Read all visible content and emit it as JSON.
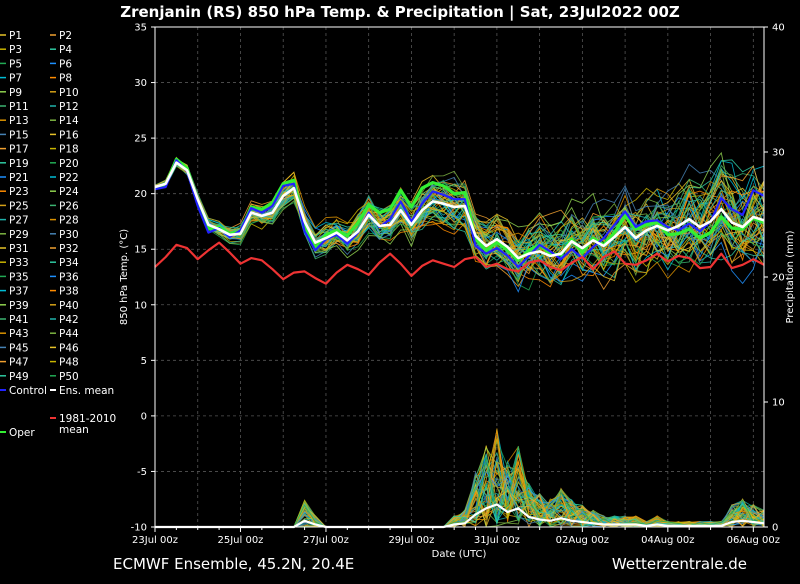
{
  "title": "Zrenjanin  (RS)  850 hPa Temp. & Precipitation | Sat, 23Jul2022 00Z",
  "footer_left": "ECMWF Ensemble, 45.2N, 20.4E",
  "footer_right": "Wetterzentrale.de",
  "colors": {
    "background": "#000000",
    "ens_mean": "#ffffff",
    "control": "#2222ff",
    "oper": "#33ee33",
    "climate": "#ee3333"
  },
  "chart_data": {
    "type": "line",
    "title": "Zrenjanin  (RS)  850 hPa Temp. & Precipitation | Sat, 23Jul2022 00Z",
    "xlabel": "Date (UTC)",
    "ylabel": "850 hPa Temp. (°C)",
    "y2label": "Precipitation (mm)",
    "ylim": [
      -10,
      35
    ],
    "y2lim": [
      0,
      40
    ],
    "yticks": [
      "-10",
      "-5",
      "0",
      "5",
      "10",
      "15",
      "20",
      "25",
      "30",
      "35"
    ],
    "y2ticks": [
      "0",
      "10",
      "20",
      "30",
      "40"
    ],
    "xticks": [
      "23Jul 00z",
      "25Jul 00z",
      "27Jul 00z",
      "29Jul 00z",
      "31Jul 00z",
      "02Aug 00z",
      "04Aug 00z",
      "06Aug 00z"
    ],
    "x_start": "2022-07-23 00z",
    "x_step_hours": 6,
    "grid": true,
    "legend": {
      "placement": "left outside",
      "members": [
        "P1",
        "P2",
        "P3",
        "P4",
        "P5",
        "P6",
        "P7",
        "P8",
        "P9",
        "P10",
        "P11",
        "P12",
        "P13",
        "P14",
        "P15",
        "P16",
        "P17",
        "P18",
        "P19",
        "P20",
        "P21",
        "P22",
        "P23",
        "P24",
        "P25",
        "P26",
        "P27",
        "P28",
        "P29",
        "P30",
        "P31",
        "P32",
        "P33",
        "P34",
        "P35",
        "P36",
        "P37",
        "P38",
        "P39",
        "P40",
        "P41",
        "P42",
        "P43",
        "P44",
        "P45",
        "P46",
        "P47",
        "P48",
        "P49",
        "P50"
      ],
      "control": "Control",
      "ens_mean": "Ens. mean",
      "climate": "1981-2010\nmean",
      "oper": "Oper"
    },
    "series": [
      {
        "name": "Ens. mean",
        "values": [
          20.6,
          20.9,
          22.8,
          22.1,
          19.5,
          17.2,
          16.8,
          16.3,
          16.4,
          18.3,
          18.0,
          18.3,
          19.8,
          20.5,
          17.5,
          15.6,
          16.0,
          16.5,
          15.8,
          16.6,
          18.1,
          17.1,
          17.2,
          18.5,
          17.2,
          18.5,
          19.3,
          19.1,
          18.8,
          18.9,
          16.2,
          15.3,
          15.9,
          15.2,
          14.2,
          14.6,
          14.8,
          14.4,
          14.6,
          15.7,
          15.1,
          15.8,
          15.3,
          16.1,
          17.0,
          16.0,
          16.7,
          17.1,
          16.7,
          17.1,
          17.7,
          17.0,
          17.5,
          18.6,
          17.4,
          17.0,
          17.9,
          17.6
        ]
      },
      {
        "name": "Control",
        "values": [
          20.4,
          20.6,
          23.0,
          22.0,
          18.9,
          16.5,
          16.9,
          16.1,
          16.7,
          18.7,
          18.3,
          18.9,
          20.7,
          20.9,
          16.6,
          14.9,
          15.9,
          16.3,
          15.5,
          16.5,
          18.3,
          17.0,
          17.7,
          19.3,
          17.5,
          19.1,
          20.2,
          19.9,
          19.5,
          19.5,
          15.3,
          14.6,
          15.1,
          14.4,
          13.4,
          14.4,
          15.4,
          14.8,
          14.1,
          15.0,
          14.2,
          15.2,
          16.0,
          17.2,
          18.4,
          17.0,
          17.5,
          17.6,
          17.0,
          16.7,
          17.3,
          16.6,
          17.5,
          19.6,
          18.6,
          18.1,
          20.3,
          19.8
        ]
      },
      {
        "name": "Oper",
        "values": [
          20.5,
          20.8,
          23.1,
          22.3,
          19.2,
          16.8,
          17.0,
          16.4,
          16.6,
          18.8,
          18.6,
          19.2,
          20.9,
          21.2,
          16.9,
          15.1,
          16.3,
          16.7,
          16.2,
          17.4,
          19.0,
          18.3,
          18.6,
          20.3,
          18.8,
          20.5,
          21.0,
          20.7,
          20.0,
          20.1,
          15.9,
          14.9,
          15.6,
          14.9,
          14.0,
          14.9,
          15.4,
          14.6,
          14.5,
          15.9,
          14.7,
          16.0,
          15.4,
          16.5,
          18.0,
          16.8,
          17.2,
          17.4,
          16.3,
          16.4,
          16.8,
          16.0,
          16.5,
          17.9,
          16.9,
          16.8,
          17.8,
          17.4
        ]
      },
      {
        "name": "1981-2010 mean",
        "values": [
          13.4,
          14.3,
          15.4,
          15.1,
          14.1,
          14.9,
          15.6,
          14.7,
          13.7,
          14.2,
          14.0,
          13.2,
          12.3,
          12.9,
          13.0,
          12.4,
          11.9,
          12.9,
          13.6,
          13.2,
          12.7,
          13.8,
          14.6,
          13.7,
          12.6,
          13.5,
          14.0,
          13.7,
          13.4,
          14.1,
          14.3,
          13.4,
          13.7,
          13.2,
          13.0,
          13.8,
          14.0,
          13.4,
          13.1,
          13.8,
          14.3,
          13.2,
          14.3,
          14.8,
          13.7,
          13.6,
          14.0,
          14.6,
          13.9,
          14.4,
          14.2,
          13.3,
          13.4,
          14.6,
          13.3,
          13.6,
          14.1,
          13.6
        ]
      }
    ],
    "precip_mean_mm": [
      0,
      0,
      0,
      0,
      0,
      0,
      0,
      0,
      0,
      0,
      0,
      0,
      0,
      0,
      0.5,
      0.2,
      0,
      0,
      0,
      0,
      0,
      0,
      0,
      0,
      0,
      0,
      0,
      0,
      0.2,
      0.3,
      1.0,
      1.5,
      1.8,
      1.2,
      1.5,
      0.8,
      0.6,
      0.5,
      0.7,
      0.5,
      0.4,
      0.3,
      0.2,
      0.2,
      0.2,
      0.2,
      0.1,
      0.2,
      0.1,
      0.1,
      0.1,
      0.1,
      0.1,
      0.1,
      0.4,
      0.5,
      0.4,
      0.3
    ]
  }
}
